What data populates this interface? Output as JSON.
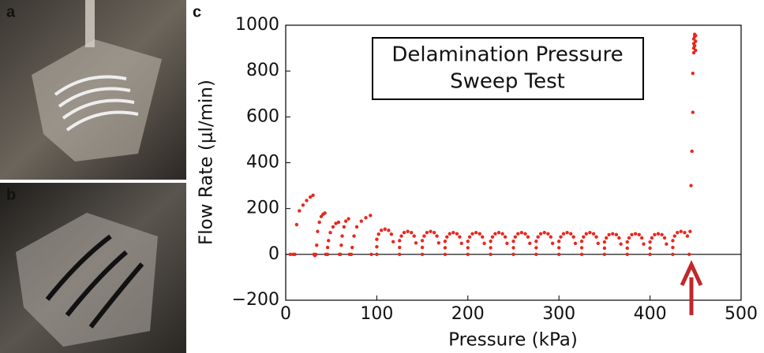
{
  "chart_data": {
    "type": "scatter",
    "panel_labels": [
      "a",
      "b",
      "c"
    ],
    "annotation_lines": [
      "Delamination Pressure",
      "Sweep Test"
    ],
    "xlabel": "Pressure (kPa)",
    "ylabel": "Flow Rate (μl/min)",
    "color": "#e8281e",
    "xlim": [
      0,
      500
    ],
    "xticks": [
      0,
      100,
      200,
      300,
      400,
      500
    ],
    "ylim": [
      -200,
      1000
    ],
    "yticks": [
      {
        "value": -200,
        "label": "−200"
      },
      0,
      200,
      400,
      600,
      800,
      1000
    ],
    "x": [
      5,
      8,
      10,
      12,
      15,
      19,
      23,
      27,
      30,
      31,
      32,
      33,
      34,
      35,
      37,
      39,
      41,
      43,
      44,
      46,
      46,
      47,
      49,
      52,
      55,
      58,
      59,
      60,
      61,
      62,
      64,
      66,
      69,
      70,
      72,
      73,
      75,
      78,
      83,
      88,
      93,
      94,
      100,
      100,
      100,
      102,
      105,
      109,
      113,
      116,
      118,
      125,
      125,
      125,
      127,
      130,
      134,
      138,
      141,
      143,
      150,
      150,
      150,
      152,
      155,
      159,
      163,
      166,
      168,
      175,
      175,
      175,
      177,
      180,
      184,
      188,
      191,
      193,
      200,
      200,
      200,
      202,
      205,
      209,
      213,
      216,
      218,
      225,
      225,
      225,
      227,
      230,
      234,
      238,
      241,
      243,
      250,
      250,
      250,
      252,
      255,
      259,
      263,
      266,
      268,
      275,
      275,
      275,
      277,
      280,
      284,
      288,
      291,
      293,
      300,
      300,
      300,
      302,
      305,
      309,
      313,
      316,
      318,
      325,
      325,
      325,
      327,
      330,
      334,
      338,
      341,
      343,
      350,
      350,
      350,
      352,
      355,
      359,
      363,
      366,
      368,
      375,
      375,
      375,
      377,
      380,
      384,
      388,
      391,
      393,
      400,
      400,
      400,
      402,
      405,
      409,
      413,
      416,
      418,
      425,
      425,
      425,
      427,
      430,
      434,
      438,
      441,
      443,
      444,
      445,
      446,
      447,
      447,
      448,
      448,
      448,
      448,
      449,
      449,
      449,
      450,
      450,
      450
    ],
    "values": [
      0,
      0,
      0,
      130,
      190,
      215,
      235,
      250,
      258,
      0,
      -5,
      0,
      40,
      100,
      140,
      165,
      175,
      180,
      0,
      0,
      30,
      60,
      95,
      120,
      135,
      140,
      0,
      0,
      40,
      80,
      120,
      145,
      155,
      0,
      0,
      30,
      80,
      120,
      145,
      160,
      170,
      0,
      0,
      33,
      66,
      88,
      105,
      110,
      105,
      88,
      55,
      0,
      30,
      60,
      80,
      95,
      100,
      95,
      80,
      50,
      0,
      30,
      60,
      80,
      95,
      100,
      95,
      80,
      50,
      0,
      29,
      57,
      76,
      90,
      95,
      90,
      76,
      48,
      0,
      29,
      57,
      76,
      90,
      95,
      90,
      76,
      48,
      0,
      29,
      57,
      76,
      90,
      95,
      90,
      76,
      48,
      0,
      29,
      57,
      76,
      90,
      95,
      90,
      76,
      48,
      0,
      29,
      57,
      76,
      90,
      95,
      90,
      76,
      48,
      0,
      29,
      57,
      76,
      90,
      95,
      90,
      76,
      48,
      0,
      29,
      57,
      76,
      90,
      95,
      90,
      76,
      48,
      0,
      27,
      54,
      72,
      86,
      90,
      86,
      72,
      45,
      0,
      27,
      54,
      72,
      86,
      90,
      86,
      72,
      45,
      0,
      27,
      54,
      72,
      86,
      90,
      86,
      72,
      45,
      0,
      30,
      60,
      80,
      95,
      100,
      95,
      80,
      0,
      100,
      300,
      450,
      620,
      790,
      880,
      900,
      920,
      940,
      960,
      910,
      950,
      890,
      930,
      955
    ]
  }
}
